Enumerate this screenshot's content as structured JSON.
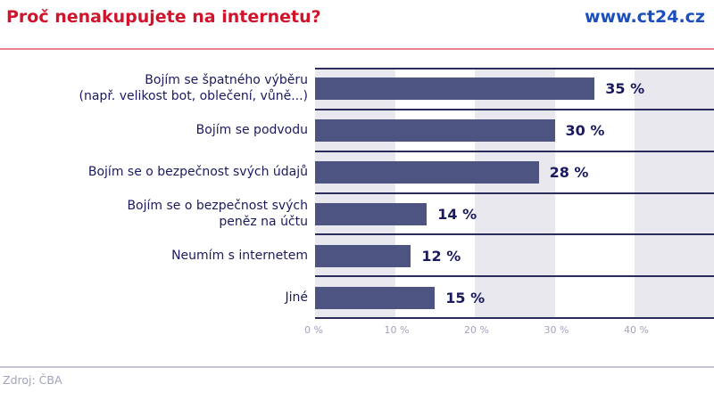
{
  "header": {
    "title": "Proč nenakupujete na internetu?",
    "brand": "www.ct24.cz"
  },
  "footer": {
    "source": "Zdroj: ČBA"
  },
  "colors": {
    "title": "#d0142c",
    "brand": "#1b4fbd",
    "bar": "#4e5482",
    "band": "#e8e8ee",
    "text": "#1b1a5e",
    "axis_text": "#a2a2bd"
  },
  "chart_data": {
    "type": "bar",
    "orientation": "horizontal",
    "title": "Proč nenakupujete na internetu?",
    "xlabel": "",
    "ylabel": "",
    "categories": [
      "Bojím se špatného výběru (např. velikost bot, oblečení, vůně...)",
      "Bojím se podvodu",
      "Bojím se o bezpečnost svých údajů",
      "Bojím se o bezpečnost svých peněz na účtu",
      "Neumím s internetem",
      "Jiné"
    ],
    "category_lines": [
      [
        "Bojím se špatného výběru",
        "(např. velikost bot, oblečení, vůně...)"
      ],
      [
        "Bojím se podvodu"
      ],
      [
        "Bojím se o bezpečnost svých údajů"
      ],
      [
        "Bojím se o bezpečnost svých",
        "peněz na účtu"
      ],
      [
        "Neumím s internetem"
      ],
      [
        "Jiné"
      ]
    ],
    "values": [
      35,
      30,
      28,
      14,
      12,
      15
    ],
    "value_labels": [
      "35 %",
      "30 %",
      "28 %",
      "14 %",
      "12 %",
      "15 %"
    ],
    "xlim": [
      0,
      50
    ],
    "xticks": [
      0,
      10,
      20,
      30,
      40
    ],
    "xtick_labels": [
      "0 %",
      "10 %",
      "20 %",
      "30 %",
      "40 %"
    ],
    "grid": "alternating vertical bands",
    "legend": "none",
    "source": "Zdroj: ČBA"
  }
}
